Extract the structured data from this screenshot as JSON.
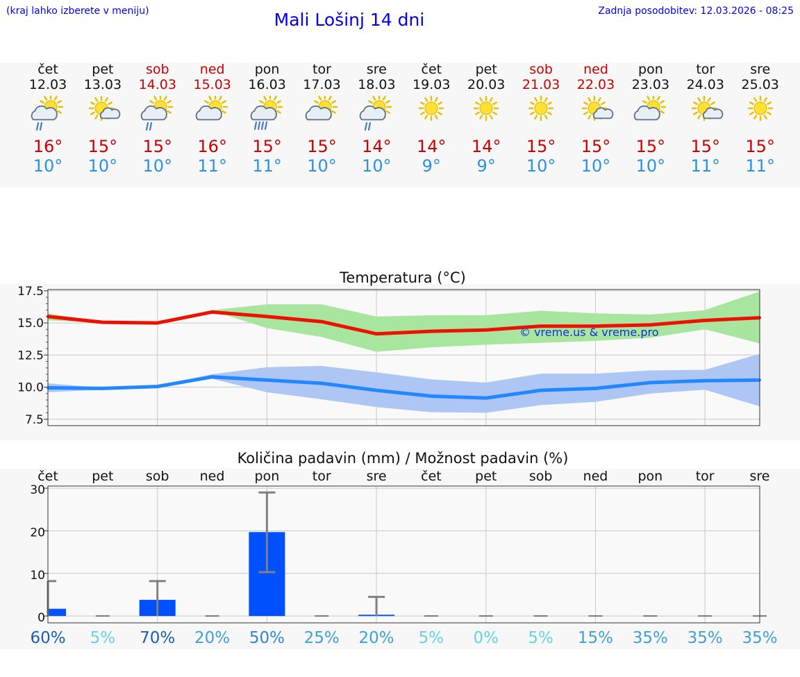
{
  "header": {
    "hint": "(kraj lahko izberete v meniju)",
    "title": "Mali Lošinj 14 dni",
    "updated": "Zadnja posodobitev: 12.03.2026 - 08:25"
  },
  "colors": {
    "weekday": "#111111",
    "weekend": "#cc0000",
    "tmax": "#cc0000",
    "tmin": "#2a90e8",
    "max_line": "#ee1100",
    "min_line": "#2288ff",
    "max_band": "#a8e6a0",
    "min_band": "#adc6f4",
    "bar": "#0050ff"
  },
  "days": [
    {
      "name": "čet",
      "date": "12.03",
      "weekend": false,
      "icon": "sun-cloud-drizzle-icon",
      "tmax": "16°",
      "tmin": "10°"
    },
    {
      "name": "pet",
      "date": "13.03",
      "weekend": false,
      "icon": "sun-small-cloud-icon",
      "tmax": "15°",
      "tmin": "10°"
    },
    {
      "name": "sob",
      "date": "14.03",
      "weekend": true,
      "icon": "sun-cloud-drizzle-icon",
      "tmax": "15°",
      "tmin": "10°"
    },
    {
      "name": "ned",
      "date": "15.03",
      "weekend": true,
      "icon": "sun-cloud-icon",
      "tmax": "16°",
      "tmin": "11°"
    },
    {
      "name": "pon",
      "date": "16.03",
      "weekend": false,
      "icon": "sun-cloud-rain-icon",
      "tmax": "15°",
      "tmin": "11°"
    },
    {
      "name": "tor",
      "date": "17.03",
      "weekend": false,
      "icon": "sun-cloud-icon",
      "tmax": "15°",
      "tmin": "10°"
    },
    {
      "name": "sre",
      "date": "18.03",
      "weekend": false,
      "icon": "sun-cloud-drizzle-icon",
      "tmax": "14°",
      "tmin": "10°"
    },
    {
      "name": "čet",
      "date": "19.03",
      "weekend": false,
      "icon": "sun-icon",
      "tmax": "14°",
      "tmin": "9°"
    },
    {
      "name": "pet",
      "date": "20.03",
      "weekend": false,
      "icon": "sun-icon",
      "tmax": "14°",
      "tmin": "9°"
    },
    {
      "name": "sob",
      "date": "21.03",
      "weekend": true,
      "icon": "sun-icon",
      "tmax": "15°",
      "tmin": "10°"
    },
    {
      "name": "ned",
      "date": "22.03",
      "weekend": true,
      "icon": "sun-small-cloud-icon",
      "tmax": "15°",
      "tmin": "10°"
    },
    {
      "name": "pon",
      "date": "23.03",
      "weekend": false,
      "icon": "sun-cloud-icon",
      "tmax": "15°",
      "tmin": "10°"
    },
    {
      "name": "tor",
      "date": "24.03",
      "weekend": false,
      "icon": "sun-small-cloud-icon",
      "tmax": "15°",
      "tmin": "11°"
    },
    {
      "name": "sre",
      "date": "25.03",
      "weekend": false,
      "icon": "sun-icon",
      "tmax": "15°",
      "tmin": "11°"
    }
  ],
  "chart_data": [
    {
      "type": "line",
      "title": "Temperatura (°C)",
      "watermark": "© vreme.us & vreme.pro",
      "x": [
        0,
        1,
        2,
        3,
        4,
        5,
        6,
        7,
        8,
        9,
        10,
        11,
        12,
        13
      ],
      "ylim": [
        7,
        17.6
      ],
      "yticks": [
        7.5,
        10.0,
        12.5,
        15.0,
        17.5
      ],
      "ytick_labels": [
        "7.5",
        "10.0",
        "12.5",
        "15.0",
        "17.5"
      ],
      "grid": true,
      "series": [
        {
          "name": "max",
          "values": [
            15.5,
            15.05,
            15.0,
            15.85,
            15.5,
            15.1,
            14.15,
            14.35,
            14.45,
            14.75,
            14.75,
            14.85,
            15.2,
            15.4
          ],
          "band_low": [
            15.2,
            15.0,
            15.0,
            15.95,
            14.6,
            13.9,
            12.75,
            13.1,
            13.3,
            13.45,
            13.6,
            13.85,
            14.5,
            13.4
          ],
          "band_high": [
            15.75,
            15.05,
            15.0,
            16.0,
            16.45,
            16.45,
            15.5,
            15.6,
            15.6,
            15.95,
            15.75,
            15.65,
            16.0,
            17.45
          ]
        },
        {
          "name": "min",
          "values": [
            9.95,
            9.9,
            10.05,
            10.8,
            10.55,
            10.3,
            9.75,
            9.3,
            9.15,
            9.75,
            9.9,
            10.35,
            10.5,
            10.55
          ],
          "band_low": [
            9.6,
            9.8,
            10.0,
            10.65,
            9.6,
            9.05,
            8.45,
            8.05,
            8.0,
            8.6,
            8.85,
            9.5,
            9.8,
            8.5
          ],
          "band_high": [
            10.3,
            9.95,
            10.1,
            11.0,
            11.55,
            11.65,
            11.15,
            10.6,
            10.35,
            11.05,
            11.05,
            11.3,
            11.35,
            12.6
          ]
        }
      ]
    },
    {
      "type": "bar",
      "title": "Količina padavin (mm) / Možnost padavin (%)",
      "categories": [
        "čet",
        "pet",
        "sob",
        "ned",
        "pon",
        "tor",
        "sre",
        "čet",
        "pet",
        "sob",
        "ned",
        "pon",
        "tor",
        "sre"
      ],
      "values": [
        1.7,
        0,
        3.8,
        0,
        19.7,
        0,
        0.3,
        0,
        0,
        0,
        0,
        0,
        0,
        0
      ],
      "err_high": [
        8.2,
        0,
        8.2,
        0,
        29.0,
        0,
        4.5,
        0,
        0,
        0,
        0,
        0,
        0,
        0
      ],
      "err_low": [
        0,
        0,
        0,
        0,
        10.3,
        0,
        0,
        0,
        0,
        0,
        0,
        0,
        0,
        0
      ],
      "ylim": [
        -1.6,
        30.5
      ],
      "yticks": [
        0,
        10,
        20,
        30
      ],
      "ytick_labels": [
        "0",
        "10",
        "20",
        "30"
      ],
      "probabilities": [
        "60%",
        "5%",
        "70%",
        "20%",
        "50%",
        "25%",
        "20%",
        "5%",
        "0%",
        "5%",
        "15%",
        "35%",
        "35%",
        "35%"
      ],
      "probability_colors": [
        "#1a5fb4",
        "#66d4e0",
        "#1a5fb4",
        "#3ea0d8",
        "#2f86d6",
        "#3ea0d8",
        "#3ea0d8",
        "#66d4e0",
        "#66d4e0",
        "#66d4e0",
        "#3ea0d8",
        "#3ea0d8",
        "#3ea0d8",
        "#3ea0d8"
      ],
      "grid": true
    }
  ]
}
